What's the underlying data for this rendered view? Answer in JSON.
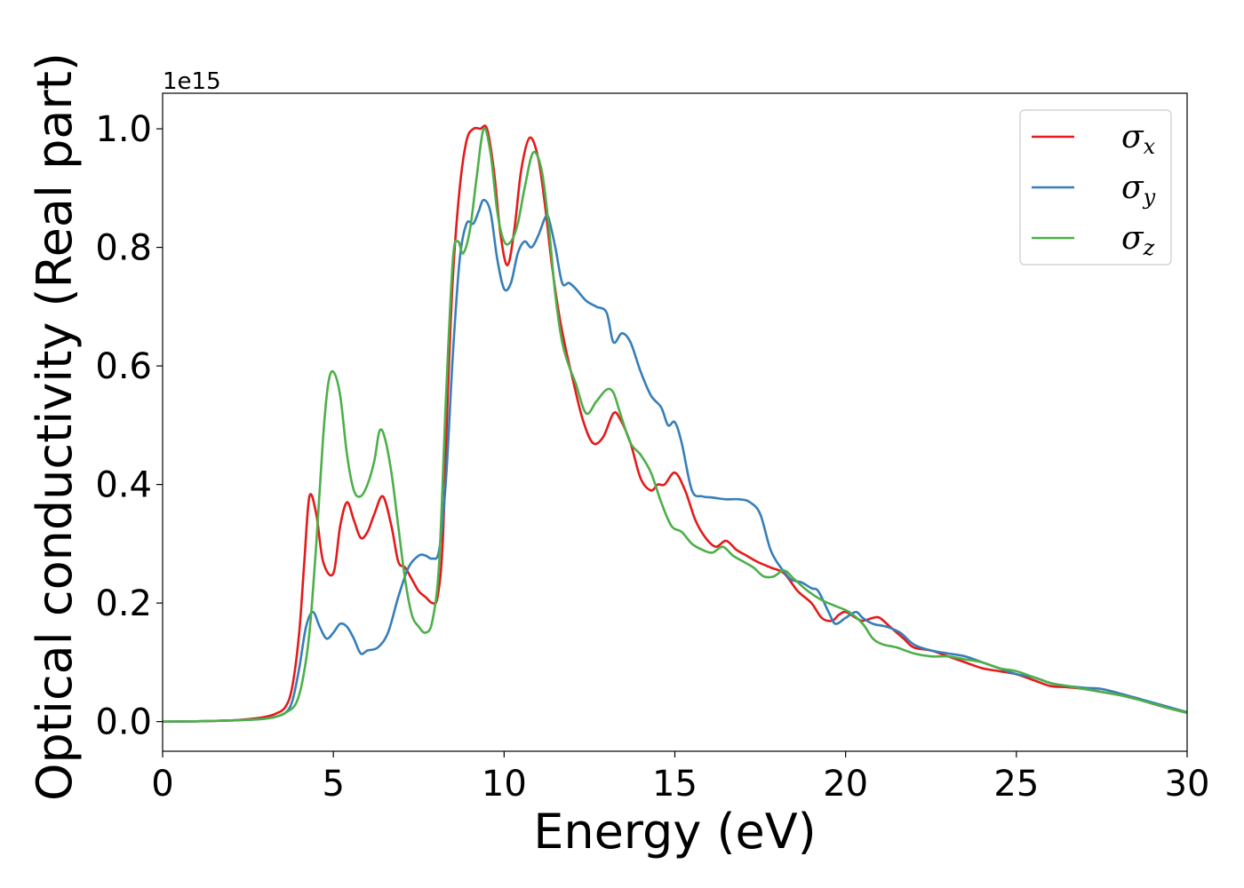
{
  "chart_data": {
    "type": "line",
    "xlabel": "Energy (eV)",
    "ylabel": "Optical conductivity (Real part)",
    "y_offset_label": "1e15",
    "xlim": [
      0,
      30
    ],
    "ylim": [
      -0.05,
      1.06
    ],
    "x_ticks": [
      0,
      5,
      10,
      15,
      20,
      25,
      30
    ],
    "x_tick_labels": [
      "0",
      "5",
      "10",
      "15",
      "20",
      "25",
      "30"
    ],
    "y_ticks": [
      0.0,
      0.2,
      0.4,
      0.6,
      0.8,
      1.0
    ],
    "y_tick_labels": [
      "0.0",
      "0.2",
      "0.4",
      "0.6",
      "0.8",
      "1.0"
    ],
    "grid": false,
    "legend_position": "top-right",
    "series": [
      {
        "name": "σx",
        "symbol": "σ",
        "subscript": "x",
        "color": "#e41a1c",
        "x": [
          0,
          1,
          2,
          2.5,
          3,
          3.3,
          3.6,
          3.8,
          4.0,
          4.15,
          4.3,
          4.5,
          4.7,
          5.0,
          5.2,
          5.4,
          5.6,
          5.8,
          6.0,
          6.2,
          6.45,
          6.7,
          6.9,
          7.1,
          7.3,
          7.5,
          7.7,
          7.9,
          8.05,
          8.2,
          8.35,
          8.5,
          8.7,
          8.9,
          9.1,
          9.3,
          9.5,
          9.7,
          9.9,
          10.1,
          10.3,
          10.5,
          10.75,
          11.0,
          11.2,
          11.4,
          11.6,
          11.8,
          12.0,
          12.3,
          12.6,
          12.9,
          13.2,
          13.4,
          13.7,
          14.0,
          14.3,
          14.5,
          14.7,
          15.0,
          15.3,
          15.6,
          15.9,
          16.2,
          16.5,
          16.8,
          17.1,
          17.4,
          17.8,
          18.2,
          18.6,
          19.0,
          19.3,
          19.6,
          19.8,
          20.0,
          20.3,
          20.5,
          20.8,
          21.0,
          21.3,
          21.7,
          22.0,
          22.5,
          23.0,
          23.5,
          24.0,
          24.5,
          25.0,
          25.5,
          26.0,
          26.5,
          27.0,
          27.5,
          28.0,
          28.5,
          29.0,
          29.5,
          30.0
        ],
        "y": [
          0.0,
          0.0005,
          0.002,
          0.004,
          0.008,
          0.013,
          0.025,
          0.06,
          0.15,
          0.27,
          0.38,
          0.35,
          0.27,
          0.25,
          0.33,
          0.37,
          0.34,
          0.31,
          0.32,
          0.35,
          0.38,
          0.33,
          0.27,
          0.26,
          0.24,
          0.22,
          0.21,
          0.2,
          0.21,
          0.3,
          0.55,
          0.75,
          0.9,
          0.98,
          1.0,
          1.0,
          1.0,
          0.93,
          0.82,
          0.77,
          0.83,
          0.93,
          0.985,
          0.95,
          0.87,
          0.77,
          0.69,
          0.63,
          0.58,
          0.51,
          0.47,
          0.48,
          0.52,
          0.51,
          0.47,
          0.41,
          0.39,
          0.4,
          0.4,
          0.42,
          0.39,
          0.34,
          0.31,
          0.295,
          0.305,
          0.29,
          0.28,
          0.27,
          0.26,
          0.25,
          0.22,
          0.2,
          0.175,
          0.17,
          0.18,
          0.185,
          0.175,
          0.17,
          0.175,
          0.175,
          0.16,
          0.14,
          0.125,
          0.12,
          0.11,
          0.1,
          0.09,
          0.085,
          0.08,
          0.07,
          0.06,
          0.058,
          0.055,
          0.05,
          0.045,
          0.04,
          0.03,
          0.022,
          0.015
        ]
      },
      {
        "name": "σy",
        "symbol": "σ",
        "subscript": "y",
        "color": "#377eb8",
        "x": [
          0,
          1,
          2,
          2.5,
          3,
          3.3,
          3.6,
          3.8,
          4.0,
          4.2,
          4.4,
          4.6,
          4.8,
          5.0,
          5.2,
          5.4,
          5.6,
          5.8,
          6.0,
          6.3,
          6.6,
          6.9,
          7.2,
          7.5,
          7.7,
          7.9,
          8.1,
          8.3,
          8.5,
          8.7,
          8.9,
          9.1,
          9.25,
          9.4,
          9.6,
          9.8,
          10.0,
          10.2,
          10.4,
          10.6,
          10.8,
          11.0,
          11.2,
          11.3,
          11.5,
          11.7,
          11.9,
          12.1,
          12.4,
          12.7,
          13.0,
          13.2,
          13.45,
          13.7,
          14.0,
          14.3,
          14.6,
          14.8,
          15.0,
          15.2,
          15.5,
          15.8,
          16.1,
          16.5,
          16.9,
          17.2,
          17.5,
          17.8,
          18.1,
          18.4,
          18.7,
          19.0,
          19.2,
          19.5,
          19.7,
          20.0,
          20.3,
          20.5,
          20.8,
          21.2,
          21.6,
          22.0,
          22.5,
          23.0,
          23.5,
          24.0,
          24.5,
          25.0,
          25.5,
          26.0,
          26.5,
          27.0,
          27.5,
          28.0,
          28.5,
          29.0,
          29.5,
          30.0
        ],
        "y": [
          0.0,
          0.0005,
          0.002,
          0.003,
          0.005,
          0.008,
          0.015,
          0.035,
          0.09,
          0.16,
          0.185,
          0.16,
          0.14,
          0.15,
          0.165,
          0.16,
          0.14,
          0.115,
          0.12,
          0.125,
          0.15,
          0.21,
          0.26,
          0.28,
          0.28,
          0.275,
          0.29,
          0.41,
          0.62,
          0.78,
          0.84,
          0.84,
          0.86,
          0.88,
          0.86,
          0.78,
          0.73,
          0.74,
          0.79,
          0.81,
          0.8,
          0.82,
          0.85,
          0.85,
          0.8,
          0.74,
          0.74,
          0.73,
          0.71,
          0.7,
          0.69,
          0.64,
          0.655,
          0.64,
          0.59,
          0.55,
          0.53,
          0.5,
          0.505,
          0.47,
          0.39,
          0.38,
          0.378,
          0.375,
          0.375,
          0.37,
          0.35,
          0.29,
          0.26,
          0.24,
          0.235,
          0.225,
          0.22,
          0.185,
          0.165,
          0.175,
          0.185,
          0.175,
          0.165,
          0.16,
          0.15,
          0.13,
          0.12,
          0.115,
          0.11,
          0.1,
          0.09,
          0.08,
          0.075,
          0.065,
          0.06,
          0.057,
          0.055,
          0.048,
          0.04,
          0.032,
          0.024,
          0.016
        ]
      },
      {
        "name": "σz",
        "symbol": "σ",
        "subscript": "z",
        "color": "#4daf4a",
        "x": [
          0,
          1,
          2,
          2.5,
          3,
          3.3,
          3.6,
          3.9,
          4.1,
          4.3,
          4.5,
          4.7,
          4.85,
          5.0,
          5.2,
          5.4,
          5.6,
          5.8,
          6.0,
          6.2,
          6.35,
          6.5,
          6.7,
          6.9,
          7.1,
          7.3,
          7.5,
          7.7,
          7.9,
          8.1,
          8.3,
          8.5,
          8.65,
          8.8,
          9.0,
          9.2,
          9.4,
          9.6,
          9.8,
          10.0,
          10.2,
          10.4,
          10.6,
          10.85,
          11.1,
          11.3,
          11.5,
          11.7,
          11.9,
          12.1,
          12.4,
          12.7,
          13.0,
          13.2,
          13.4,
          13.7,
          14.0,
          14.3,
          14.6,
          14.9,
          15.2,
          15.5,
          15.8,
          16.1,
          16.4,
          16.7,
          17.0,
          17.3,
          17.6,
          17.9,
          18.2,
          18.5,
          18.9,
          19.3,
          19.7,
          20.1,
          20.5,
          20.8,
          21.1,
          21.5,
          22.0,
          22.5,
          23.0,
          23.5,
          24.0,
          24.5,
          25.0,
          25.5,
          26.0,
          26.5,
          27.0,
          27.5,
          28.0,
          28.5,
          29.0,
          29.5,
          30.0
        ],
        "y": [
          0.0,
          0.0005,
          0.002,
          0.003,
          0.005,
          0.008,
          0.015,
          0.03,
          0.07,
          0.15,
          0.3,
          0.48,
          0.57,
          0.59,
          0.55,
          0.45,
          0.39,
          0.38,
          0.4,
          0.44,
          0.49,
          0.48,
          0.42,
          0.33,
          0.24,
          0.18,
          0.16,
          0.15,
          0.17,
          0.27,
          0.55,
          0.78,
          0.81,
          0.79,
          0.83,
          0.92,
          1.0,
          0.96,
          0.86,
          0.81,
          0.81,
          0.84,
          0.9,
          0.96,
          0.93,
          0.84,
          0.72,
          0.64,
          0.6,
          0.57,
          0.52,
          0.54,
          0.56,
          0.555,
          0.52,
          0.47,
          0.45,
          0.42,
          0.37,
          0.33,
          0.32,
          0.3,
          0.29,
          0.285,
          0.295,
          0.28,
          0.27,
          0.26,
          0.245,
          0.245,
          0.255,
          0.24,
          0.22,
          0.205,
          0.195,
          0.185,
          0.165,
          0.14,
          0.13,
          0.125,
          0.115,
          0.11,
          0.11,
          0.105,
          0.1,
          0.09,
          0.085,
          0.075,
          0.065,
          0.06,
          0.055,
          0.05,
          0.045,
          0.038,
          0.03,
          0.022,
          0.015
        ]
      }
    ]
  }
}
